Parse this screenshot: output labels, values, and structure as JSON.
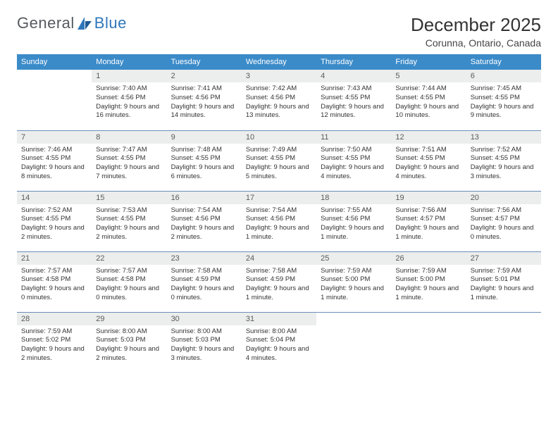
{
  "brand": {
    "part1": "General",
    "part2": "Blue"
  },
  "title": "December 2025",
  "location": "Corunna, Ontario, Canada",
  "colors": {
    "header_bg": "#3b8bc9",
    "header_text": "#ffffff",
    "daynum_bg": "#eceded",
    "border": "#6a8fb8",
    "brand_blue": "#2f77bb",
    "text": "#333333"
  },
  "day_headers": [
    "Sunday",
    "Monday",
    "Tuesday",
    "Wednesday",
    "Thursday",
    "Friday",
    "Saturday"
  ],
  "weeks": [
    [
      {
        "n": "",
        "sr": "",
        "ss": "",
        "dl": ""
      },
      {
        "n": "1",
        "sr": "Sunrise: 7:40 AM",
        "ss": "Sunset: 4:56 PM",
        "dl": "Daylight: 9 hours and 16 minutes."
      },
      {
        "n": "2",
        "sr": "Sunrise: 7:41 AM",
        "ss": "Sunset: 4:56 PM",
        "dl": "Daylight: 9 hours and 14 minutes."
      },
      {
        "n": "3",
        "sr": "Sunrise: 7:42 AM",
        "ss": "Sunset: 4:56 PM",
        "dl": "Daylight: 9 hours and 13 minutes."
      },
      {
        "n": "4",
        "sr": "Sunrise: 7:43 AM",
        "ss": "Sunset: 4:55 PM",
        "dl": "Daylight: 9 hours and 12 minutes."
      },
      {
        "n": "5",
        "sr": "Sunrise: 7:44 AM",
        "ss": "Sunset: 4:55 PM",
        "dl": "Daylight: 9 hours and 10 minutes."
      },
      {
        "n": "6",
        "sr": "Sunrise: 7:45 AM",
        "ss": "Sunset: 4:55 PM",
        "dl": "Daylight: 9 hours and 9 minutes."
      }
    ],
    [
      {
        "n": "7",
        "sr": "Sunrise: 7:46 AM",
        "ss": "Sunset: 4:55 PM",
        "dl": "Daylight: 9 hours and 8 minutes."
      },
      {
        "n": "8",
        "sr": "Sunrise: 7:47 AM",
        "ss": "Sunset: 4:55 PM",
        "dl": "Daylight: 9 hours and 7 minutes."
      },
      {
        "n": "9",
        "sr": "Sunrise: 7:48 AM",
        "ss": "Sunset: 4:55 PM",
        "dl": "Daylight: 9 hours and 6 minutes."
      },
      {
        "n": "10",
        "sr": "Sunrise: 7:49 AM",
        "ss": "Sunset: 4:55 PM",
        "dl": "Daylight: 9 hours and 5 minutes."
      },
      {
        "n": "11",
        "sr": "Sunrise: 7:50 AM",
        "ss": "Sunset: 4:55 PM",
        "dl": "Daylight: 9 hours and 4 minutes."
      },
      {
        "n": "12",
        "sr": "Sunrise: 7:51 AM",
        "ss": "Sunset: 4:55 PM",
        "dl": "Daylight: 9 hours and 4 minutes."
      },
      {
        "n": "13",
        "sr": "Sunrise: 7:52 AM",
        "ss": "Sunset: 4:55 PM",
        "dl": "Daylight: 9 hours and 3 minutes."
      }
    ],
    [
      {
        "n": "14",
        "sr": "Sunrise: 7:52 AM",
        "ss": "Sunset: 4:55 PM",
        "dl": "Daylight: 9 hours and 2 minutes."
      },
      {
        "n": "15",
        "sr": "Sunrise: 7:53 AM",
        "ss": "Sunset: 4:55 PM",
        "dl": "Daylight: 9 hours and 2 minutes."
      },
      {
        "n": "16",
        "sr": "Sunrise: 7:54 AM",
        "ss": "Sunset: 4:56 PM",
        "dl": "Daylight: 9 hours and 2 minutes."
      },
      {
        "n": "17",
        "sr": "Sunrise: 7:54 AM",
        "ss": "Sunset: 4:56 PM",
        "dl": "Daylight: 9 hours and 1 minute."
      },
      {
        "n": "18",
        "sr": "Sunrise: 7:55 AM",
        "ss": "Sunset: 4:56 PM",
        "dl": "Daylight: 9 hours and 1 minute."
      },
      {
        "n": "19",
        "sr": "Sunrise: 7:56 AM",
        "ss": "Sunset: 4:57 PM",
        "dl": "Daylight: 9 hours and 1 minute."
      },
      {
        "n": "20",
        "sr": "Sunrise: 7:56 AM",
        "ss": "Sunset: 4:57 PM",
        "dl": "Daylight: 9 hours and 0 minutes."
      }
    ],
    [
      {
        "n": "21",
        "sr": "Sunrise: 7:57 AM",
        "ss": "Sunset: 4:58 PM",
        "dl": "Daylight: 9 hours and 0 minutes."
      },
      {
        "n": "22",
        "sr": "Sunrise: 7:57 AM",
        "ss": "Sunset: 4:58 PM",
        "dl": "Daylight: 9 hours and 0 minutes."
      },
      {
        "n": "23",
        "sr": "Sunrise: 7:58 AM",
        "ss": "Sunset: 4:59 PM",
        "dl": "Daylight: 9 hours and 0 minutes."
      },
      {
        "n": "24",
        "sr": "Sunrise: 7:58 AM",
        "ss": "Sunset: 4:59 PM",
        "dl": "Daylight: 9 hours and 1 minute."
      },
      {
        "n": "25",
        "sr": "Sunrise: 7:59 AM",
        "ss": "Sunset: 5:00 PM",
        "dl": "Daylight: 9 hours and 1 minute."
      },
      {
        "n": "26",
        "sr": "Sunrise: 7:59 AM",
        "ss": "Sunset: 5:00 PM",
        "dl": "Daylight: 9 hours and 1 minute."
      },
      {
        "n": "27",
        "sr": "Sunrise: 7:59 AM",
        "ss": "Sunset: 5:01 PM",
        "dl": "Daylight: 9 hours and 1 minute."
      }
    ],
    [
      {
        "n": "28",
        "sr": "Sunrise: 7:59 AM",
        "ss": "Sunset: 5:02 PM",
        "dl": "Daylight: 9 hours and 2 minutes."
      },
      {
        "n": "29",
        "sr": "Sunrise: 8:00 AM",
        "ss": "Sunset: 5:03 PM",
        "dl": "Daylight: 9 hours and 2 minutes."
      },
      {
        "n": "30",
        "sr": "Sunrise: 8:00 AM",
        "ss": "Sunset: 5:03 PM",
        "dl": "Daylight: 9 hours and 3 minutes."
      },
      {
        "n": "31",
        "sr": "Sunrise: 8:00 AM",
        "ss": "Sunset: 5:04 PM",
        "dl": "Daylight: 9 hours and 4 minutes."
      },
      {
        "n": "",
        "sr": "",
        "ss": "",
        "dl": ""
      },
      {
        "n": "",
        "sr": "",
        "ss": "",
        "dl": ""
      },
      {
        "n": "",
        "sr": "",
        "ss": "",
        "dl": ""
      }
    ]
  ]
}
